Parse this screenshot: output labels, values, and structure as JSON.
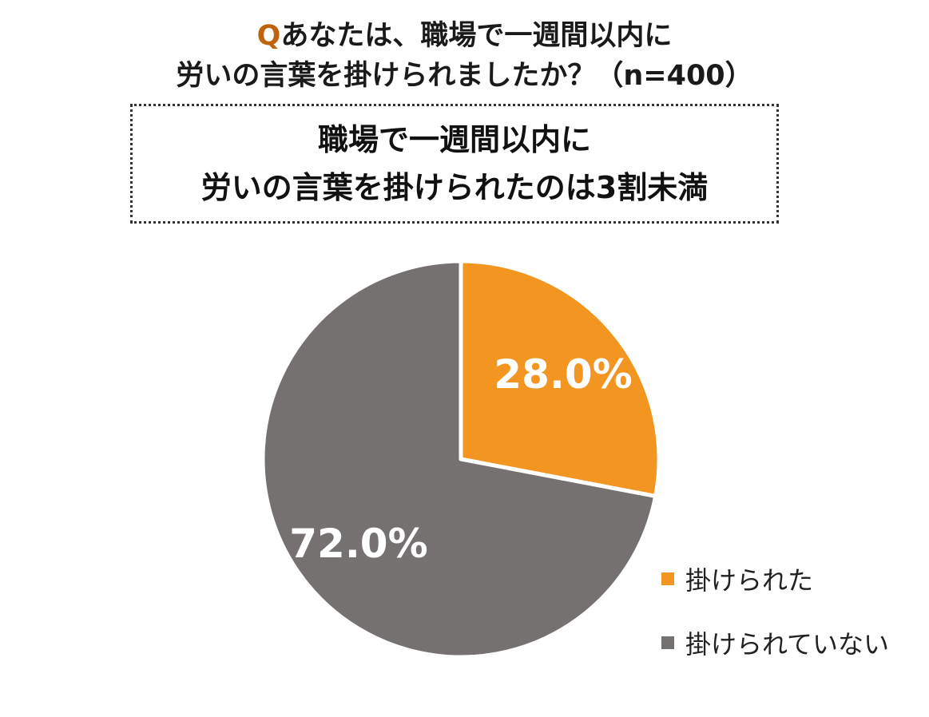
{
  "question": {
    "marker": "Q",
    "line1": "あなたは、職場で一週間以内に",
    "line2": "労いの言葉を掛けられましたか？（n=400）"
  },
  "headline": {
    "line1": "職場で一週間以内に",
    "line2": "労いの言葉を掛けられたのは3割未満"
  },
  "chart_data": {
    "type": "pie",
    "title": "",
    "slices": [
      {
        "name": "掛けられた",
        "value": 28.0,
        "label": "28.0%",
        "color": "#f39621"
      },
      {
        "name": "掛けられていない",
        "value": 72.0,
        "label": "72.0%",
        "color": "#767171"
      }
    ],
    "start_angle": "12 o'clock",
    "direction": "clockwise",
    "legend_position": "bottom-right"
  }
}
